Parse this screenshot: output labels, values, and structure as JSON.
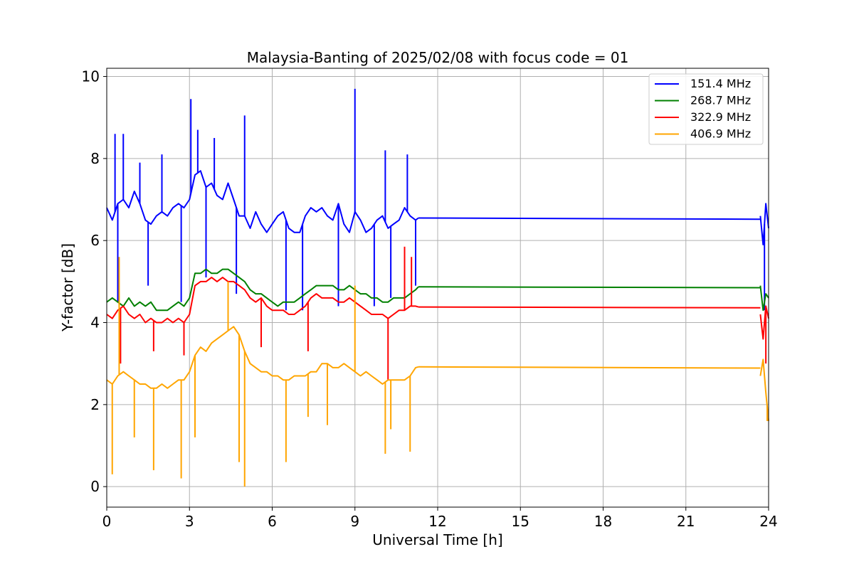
{
  "chart_data": {
    "type": "line",
    "title": "Malaysia-Banting of 2025/02/08 with focus code = 01",
    "xlabel": "Universal Time [h]",
    "ylabel": "Y-factor [dB]",
    "xlim": [
      0,
      24
    ],
    "ylim": [
      -0.5,
      10.2
    ],
    "xticks": [
      0,
      3,
      6,
      9,
      12,
      15,
      18,
      21,
      24
    ],
    "yticks": [
      0,
      2,
      4,
      6,
      8,
      10
    ],
    "grid": true,
    "legend_position": "top-right",
    "series": [
      {
        "name": "151.4 MHz",
        "color": "#0000ff",
        "segments": [
          {
            "x": [
              0.0,
              0.2,
              0.4,
              0.6,
              0.8,
              1.0,
              1.2,
              1.4,
              1.6,
              1.8,
              2.0,
              2.2,
              2.4,
              2.6,
              2.8,
              3.0,
              3.2,
              3.4,
              3.6,
              3.8,
              4.0,
              4.2,
              4.4,
              4.6,
              4.8,
              5.0,
              5.2,
              5.4,
              5.6,
              5.8,
              6.0,
              6.2,
              6.4,
              6.6,
              6.8,
              7.0,
              7.2,
              7.4,
              7.6,
              7.8,
              8.0,
              8.2,
              8.4,
              8.6,
              8.8,
              9.0,
              9.2,
              9.4,
              9.6,
              9.8,
              10.0,
              10.2,
              10.4,
              10.6,
              10.8,
              11.0,
              11.2,
              11.3
            ],
            "y": [
              6.8,
              6.5,
              6.9,
              7.0,
              6.8,
              7.2,
              6.9,
              6.5,
              6.4,
              6.6,
              6.7,
              6.6,
              6.8,
              6.9,
              6.8,
              7.0,
              7.6,
              7.7,
              7.3,
              7.4,
              7.1,
              7.0,
              7.4,
              7.0,
              6.6,
              6.6,
              6.3,
              6.7,
              6.4,
              6.2,
              6.4,
              6.6,
              6.7,
              6.3,
              6.2,
              6.2,
              6.6,
              6.8,
              6.7,
              6.8,
              6.6,
              6.5,
              6.9,
              6.4,
              6.2,
              6.7,
              6.5,
              6.2,
              6.3,
              6.5,
              6.6,
              6.3,
              6.4,
              6.5,
              6.8,
              6.6,
              6.5,
              6.55
            ]
          },
          {
            "x": [
              11.3,
              23.7
            ],
            "y": [
              6.55,
              6.52
            ]
          },
          {
            "x": [
              23.7,
              23.8,
              23.9,
              24.0
            ],
            "y": [
              6.6,
              5.9,
              6.9,
              6.3
            ]
          }
        ],
        "spikes": [
          {
            "x": 0.3,
            "y": 8.6
          },
          {
            "x": 0.6,
            "y": 8.6
          },
          {
            "x": 1.2,
            "y": 7.9
          },
          {
            "x": 2.0,
            "y": 8.1
          },
          {
            "x": 3.05,
            "y": 9.45
          },
          {
            "x": 3.3,
            "y": 8.7
          },
          {
            "x": 3.9,
            "y": 8.5
          },
          {
            "x": 5.0,
            "y": 9.05
          },
          {
            "x": 9.0,
            "y": 9.7
          },
          {
            "x": 10.1,
            "y": 8.2
          },
          {
            "x": 10.9,
            "y": 8.1
          },
          {
            "x": 0.4,
            "y": 4.5
          },
          {
            "x": 1.5,
            "y": 4.9
          },
          {
            "x": 2.7,
            "y": 4.5
          },
          {
            "x": 3.6,
            "y": 5.1
          },
          {
            "x": 4.7,
            "y": 4.7
          },
          {
            "x": 6.5,
            "y": 4.3
          },
          {
            "x": 7.1,
            "y": 4.3
          },
          {
            "x": 8.4,
            "y": 4.4
          },
          {
            "x": 9.7,
            "y": 4.4
          },
          {
            "x": 10.3,
            "y": 4.6
          },
          {
            "x": 11.2,
            "y": 4.9
          },
          {
            "x": 23.85,
            "y": 4.3
          }
        ]
      },
      {
        "name": "268.7 MHz",
        "color": "#008000",
        "segments": [
          {
            "x": [
              0.0,
              0.2,
              0.4,
              0.6,
              0.8,
              1.0,
              1.2,
              1.4,
              1.6,
              1.8,
              2.0,
              2.2,
              2.4,
              2.6,
              2.8,
              3.0,
              3.2,
              3.4,
              3.6,
              3.8,
              4.0,
              4.2,
              4.4,
              4.6,
              4.8,
              5.0,
              5.2,
              5.4,
              5.6,
              5.8,
              6.0,
              6.2,
              6.4,
              6.6,
              6.8,
              7.0,
              7.2,
              7.4,
              7.6,
              7.8,
              8.0,
              8.2,
              8.4,
              8.6,
              8.8,
              9.0,
              9.2,
              9.4,
              9.6,
              9.8,
              10.0,
              10.2,
              10.4,
              10.6,
              10.8,
              11.0,
              11.2,
              11.3
            ],
            "y": [
              4.5,
              4.6,
              4.5,
              4.4,
              4.6,
              4.4,
              4.5,
              4.4,
              4.5,
              4.3,
              4.3,
              4.3,
              4.4,
              4.5,
              4.4,
              4.6,
              5.2,
              5.2,
              5.3,
              5.2,
              5.2,
              5.3,
              5.3,
              5.2,
              5.1,
              5.0,
              4.8,
              4.7,
              4.7,
              4.6,
              4.5,
              4.4,
              4.5,
              4.5,
              4.5,
              4.6,
              4.7,
              4.8,
              4.9,
              4.9,
              4.9,
              4.9,
              4.8,
              4.8,
              4.9,
              4.8,
              4.7,
              4.7,
              4.6,
              4.6,
              4.5,
              4.5,
              4.6,
              4.6,
              4.6,
              4.7,
              4.8,
              4.87
            ]
          },
          {
            "x": [
              11.3,
              23.7
            ],
            "y": [
              4.87,
              4.85
            ]
          },
          {
            "x": [
              23.7,
              23.8,
              23.9,
              24.0
            ],
            "y": [
              4.9,
              4.3,
              4.7,
              4.6
            ]
          }
        ],
        "spikes": []
      },
      {
        "name": "322.9 MHz",
        "color": "#ff0000",
        "segments": [
          {
            "x": [
              0.0,
              0.2,
              0.4,
              0.6,
              0.8,
              1.0,
              1.2,
              1.4,
              1.6,
              1.8,
              2.0,
              2.2,
              2.4,
              2.6,
              2.8,
              3.0,
              3.2,
              3.4,
              3.6,
              3.8,
              4.0,
              4.2,
              4.4,
              4.6,
              4.8,
              5.0,
              5.2,
              5.4,
              5.6,
              5.8,
              6.0,
              6.2,
              6.4,
              6.6,
              6.8,
              7.0,
              7.2,
              7.4,
              7.6,
              7.8,
              8.0,
              8.2,
              8.4,
              8.6,
              8.8,
              9.0,
              9.2,
              9.4,
              9.6,
              9.8,
              10.0,
              10.2,
              10.4,
              10.6,
              10.8,
              11.0,
              11.2,
              11.3
            ],
            "y": [
              4.2,
              4.1,
              4.3,
              4.4,
              4.2,
              4.1,
              4.2,
              4.0,
              4.1,
              4.0,
              4.0,
              4.1,
              4.0,
              4.1,
              4.0,
              4.2,
              4.9,
              5.0,
              5.0,
              5.1,
              5.0,
              5.1,
              5.0,
              5.0,
              4.9,
              4.8,
              4.6,
              4.5,
              4.6,
              4.4,
              4.3,
              4.3,
              4.3,
              4.2,
              4.2,
              4.3,
              4.4,
              4.6,
              4.7,
              4.6,
              4.6,
              4.6,
              4.5,
              4.5,
              4.6,
              4.5,
              4.4,
              4.3,
              4.2,
              4.2,
              4.2,
              4.1,
              4.2,
              4.3,
              4.3,
              4.4,
              4.4,
              4.38
            ]
          },
          {
            "x": [
              11.3,
              23.7
            ],
            "y": [
              4.38,
              4.36
            ]
          },
          {
            "x": [
              23.7,
              23.8,
              23.9,
              24.0
            ],
            "y": [
              4.2,
              3.6,
              4.4,
              4.1
            ]
          }
        ],
        "spikes": [
          {
            "x": 0.5,
            "y": 3.0
          },
          {
            "x": 1.7,
            "y": 3.3
          },
          {
            "x": 2.8,
            "y": 3.2
          },
          {
            "x": 5.6,
            "y": 3.4
          },
          {
            "x": 7.3,
            "y": 3.3
          },
          {
            "x": 10.2,
            "y": 2.6
          },
          {
            "x": 10.8,
            "y": 5.85
          },
          {
            "x": 11.05,
            "y": 5.6
          },
          {
            "x": 23.9,
            "y": 3.0
          }
        ]
      },
      {
        "name": "406.9 MHz",
        "color": "#ffa500",
        "segments": [
          {
            "x": [
              0.0,
              0.2,
              0.4,
              0.6,
              0.8,
              1.0,
              1.2,
              1.4,
              1.6,
              1.8,
              2.0,
              2.2,
              2.4,
              2.6,
              2.8,
              3.0,
              3.2,
              3.4,
              3.6,
              3.8,
              4.0,
              4.2,
              4.4,
              4.6,
              4.8,
              5.0,
              5.2,
              5.4,
              5.6,
              5.8,
              6.0,
              6.2,
              6.4,
              6.6,
              6.8,
              7.0,
              7.2,
              7.4,
              7.6,
              7.8,
              8.0,
              8.2,
              8.4,
              8.6,
              8.8,
              9.0,
              9.2,
              9.4,
              9.6,
              9.8,
              10.0,
              10.2,
              10.4,
              10.6,
              10.8,
              11.0,
              11.2,
              11.3
            ],
            "y": [
              2.6,
              2.5,
              2.7,
              2.8,
              2.7,
              2.6,
              2.5,
              2.5,
              2.4,
              2.4,
              2.5,
              2.4,
              2.5,
              2.6,
              2.6,
              2.8,
              3.2,
              3.4,
              3.3,
              3.5,
              3.6,
              3.7,
              3.8,
              3.9,
              3.7,
              3.3,
              3.0,
              2.9,
              2.8,
              2.8,
              2.7,
              2.7,
              2.6,
              2.6,
              2.7,
              2.7,
              2.7,
              2.8,
              2.8,
              3.0,
              3.0,
              2.9,
              2.9,
              3.0,
              2.9,
              2.8,
              2.7,
              2.8,
              2.7,
              2.6,
              2.5,
              2.6,
              2.6,
              2.6,
              2.6,
              2.7,
              2.9,
              2.92
            ]
          },
          {
            "x": [
              11.3,
              23.7
            ],
            "y": [
              2.92,
              2.89
            ]
          },
          {
            "x": [
              23.7,
              23.8,
              23.9,
              24.0
            ],
            "y": [
              2.7,
              3.1,
              2.3,
              1.6
            ]
          }
        ],
        "spikes": [
          {
            "x": 0.2,
            "y": 0.3
          },
          {
            "x": 0.45,
            "y": 5.6
          },
          {
            "x": 1.0,
            "y": 1.2
          },
          {
            "x": 1.7,
            "y": 0.4
          },
          {
            "x": 2.7,
            "y": 0.2
          },
          {
            "x": 3.2,
            "y": 1.2
          },
          {
            "x": 4.4,
            "y": 5.0
          },
          {
            "x": 4.8,
            "y": 0.6
          },
          {
            "x": 5.0,
            "y": 0.0
          },
          {
            "x": 6.5,
            "y": 0.6
          },
          {
            "x": 7.3,
            "y": 1.7
          },
          {
            "x": 8.0,
            "y": 1.5
          },
          {
            "x": 9.0,
            "y": 4.9
          },
          {
            "x": 10.1,
            "y": 0.8
          },
          {
            "x": 10.3,
            "y": 1.4
          },
          {
            "x": 11.0,
            "y": 0.85
          },
          {
            "x": 23.95,
            "y": 1.6
          }
        ]
      }
    ]
  }
}
